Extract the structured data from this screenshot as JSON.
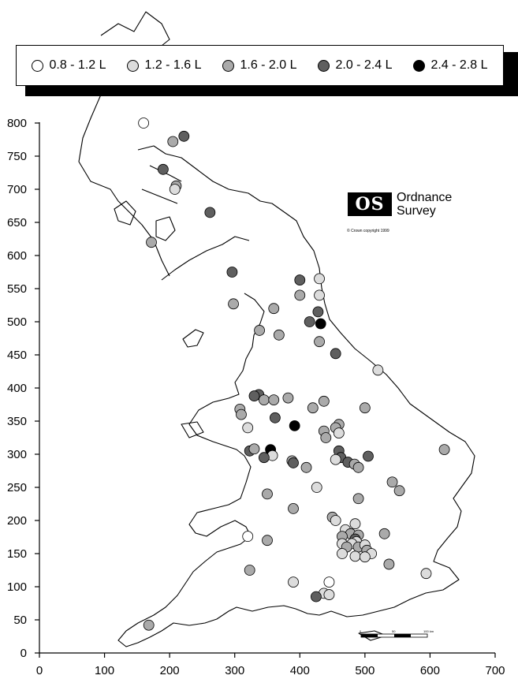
{
  "legend": {
    "items": [
      {
        "label": "0.8 - 1.2 L",
        "color": "#ffffff"
      },
      {
        "label": "1.2 - 1.6 L",
        "color": "#dcdcdc"
      },
      {
        "label": "1.6 - 2.0 L",
        "color": "#aaaaaa"
      },
      {
        "label": "2.0 - 2.4 L",
        "color": "#5f5f5f"
      },
      {
        "label": "2.4 - 2.8 L",
        "color": "#000000"
      }
    ]
  },
  "logo": {
    "badge": "OS",
    "line1": "Ordnance",
    "line2": "Survey",
    "copyright": "© Crown copyright 1999"
  },
  "chart_data": {
    "type": "scatter",
    "xlim": [
      0,
      700
    ],
    "ylim": [
      0,
      800
    ],
    "xticks": [
      "0",
      "100",
      "200",
      "300",
      "400",
      "500",
      "600",
      "700"
    ],
    "yticks": [
      "0",
      "50",
      "100",
      "150",
      "200",
      "250",
      "300",
      "350",
      "400",
      "450",
      "500",
      "550",
      "600",
      "650",
      "700",
      "750",
      "800"
    ],
    "scale_bar": {
      "labels": [
        "0",
        "50",
        "100 km"
      ]
    },
    "points": [
      {
        "x": 222,
        "y": 780,
        "c": 3
      },
      {
        "x": 205,
        "y": 772,
        "c": 2
      },
      {
        "x": 190,
        "y": 730,
        "c": 3
      },
      {
        "x": 210,
        "y": 705,
        "c": 2
      },
      {
        "x": 208,
        "y": 700,
        "c": 1
      },
      {
        "x": 262,
        "y": 665,
        "c": 3
      },
      {
        "x": 172,
        "y": 620,
        "c": 2
      },
      {
        "x": 160,
        "y": 800,
        "c": 0
      },
      {
        "x": 296,
        "y": 575,
        "c": 3
      },
      {
        "x": 298,
        "y": 527,
        "c": 2
      },
      {
        "x": 400,
        "y": 563,
        "c": 3
      },
      {
        "x": 430,
        "y": 565,
        "c": 1
      },
      {
        "x": 400,
        "y": 540,
        "c": 2
      },
      {
        "x": 430,
        "y": 540,
        "c": 1
      },
      {
        "x": 360,
        "y": 520,
        "c": 2
      },
      {
        "x": 428,
        "y": 515,
        "c": 3
      },
      {
        "x": 415,
        "y": 500,
        "c": 3
      },
      {
        "x": 432,
        "y": 497,
        "c": 4
      },
      {
        "x": 338,
        "y": 487,
        "c": 2
      },
      {
        "x": 368,
        "y": 480,
        "c": 2
      },
      {
        "x": 430,
        "y": 470,
        "c": 2
      },
      {
        "x": 455,
        "y": 452,
        "c": 3
      },
      {
        "x": 520,
        "y": 427,
        "c": 1
      },
      {
        "x": 382,
        "y": 385,
        "c": 2
      },
      {
        "x": 337,
        "y": 390,
        "c": 3
      },
      {
        "x": 330,
        "y": 388,
        "c": 3
      },
      {
        "x": 345,
        "y": 382,
        "c": 2
      },
      {
        "x": 360,
        "y": 382,
        "c": 2
      },
      {
        "x": 437,
        "y": 380,
        "c": 2
      },
      {
        "x": 500,
        "y": 370,
        "c": 2
      },
      {
        "x": 308,
        "y": 368,
        "c": 2
      },
      {
        "x": 310,
        "y": 360,
        "c": 2
      },
      {
        "x": 420,
        "y": 370,
        "c": 2
      },
      {
        "x": 362,
        "y": 355,
        "c": 3
      },
      {
        "x": 320,
        "y": 340,
        "c": 1
      },
      {
        "x": 392,
        "y": 343,
        "c": 4
      },
      {
        "x": 460,
        "y": 345,
        "c": 2
      },
      {
        "x": 437,
        "y": 335,
        "c": 2
      },
      {
        "x": 455,
        "y": 340,
        "c": 2
      },
      {
        "x": 440,
        "y": 325,
        "c": 2
      },
      {
        "x": 460,
        "y": 332,
        "c": 1
      },
      {
        "x": 355,
        "y": 307,
        "c": 4
      },
      {
        "x": 323,
        "y": 305,
        "c": 3
      },
      {
        "x": 330,
        "y": 308,
        "c": 2
      },
      {
        "x": 358,
        "y": 298,
        "c": 1
      },
      {
        "x": 345,
        "y": 295,
        "c": 3
      },
      {
        "x": 460,
        "y": 305,
        "c": 3
      },
      {
        "x": 463,
        "y": 295,
        "c": 3
      },
      {
        "x": 455,
        "y": 292,
        "c": 1
      },
      {
        "x": 505,
        "y": 297,
        "c": 3
      },
      {
        "x": 622,
        "y": 307,
        "c": 2
      },
      {
        "x": 388,
        "y": 290,
        "c": 2
      },
      {
        "x": 390,
        "y": 287,
        "c": 3
      },
      {
        "x": 410,
        "y": 280,
        "c": 2
      },
      {
        "x": 474,
        "y": 288,
        "c": 3
      },
      {
        "x": 484,
        "y": 285,
        "c": 2
      },
      {
        "x": 490,
        "y": 280,
        "c": 2
      },
      {
        "x": 542,
        "y": 258,
        "c": 2
      },
      {
        "x": 553,
        "y": 245,
        "c": 2
      },
      {
        "x": 426,
        "y": 250,
        "c": 1
      },
      {
        "x": 350,
        "y": 240,
        "c": 2
      },
      {
        "x": 490,
        "y": 233,
        "c": 2
      },
      {
        "x": 390,
        "y": 218,
        "c": 2
      },
      {
        "x": 450,
        "y": 205,
        "c": 2
      },
      {
        "x": 455,
        "y": 200,
        "c": 1
      },
      {
        "x": 485,
        "y": 195,
        "c": 1
      },
      {
        "x": 470,
        "y": 186,
        "c": 1
      },
      {
        "x": 478,
        "y": 180,
        "c": 2
      },
      {
        "x": 465,
        "y": 176,
        "c": 2
      },
      {
        "x": 490,
        "y": 178,
        "c": 2
      },
      {
        "x": 485,
        "y": 172,
        "c": 3
      },
      {
        "x": 487,
        "y": 168,
        "c": 1
      },
      {
        "x": 465,
        "y": 165,
        "c": 1
      },
      {
        "x": 480,
        "y": 165,
        "c": 1
      },
      {
        "x": 490,
        "y": 160,
        "c": 2
      },
      {
        "x": 472,
        "y": 160,
        "c": 2
      },
      {
        "x": 500,
        "y": 163,
        "c": 1
      },
      {
        "x": 503,
        "y": 155,
        "c": 2
      },
      {
        "x": 510,
        "y": 150,
        "c": 1
      },
      {
        "x": 465,
        "y": 150,
        "c": 1
      },
      {
        "x": 485,
        "y": 146,
        "c": 1
      },
      {
        "x": 500,
        "y": 145,
        "c": 1
      },
      {
        "x": 530,
        "y": 180,
        "c": 2
      },
      {
        "x": 537,
        "y": 134,
        "c": 2
      },
      {
        "x": 594,
        "y": 120,
        "c": 1
      },
      {
        "x": 320,
        "y": 176,
        "c": 0
      },
      {
        "x": 350,
        "y": 170,
        "c": 2
      },
      {
        "x": 323,
        "y": 125,
        "c": 2
      },
      {
        "x": 390,
        "y": 107,
        "c": 1
      },
      {
        "x": 445,
        "y": 107,
        "c": 0
      },
      {
        "x": 437,
        "y": 90,
        "c": 1
      },
      {
        "x": 445,
        "y": 88,
        "c": 1
      },
      {
        "x": 425,
        "y": 85,
        "c": 3
      },
      {
        "x": 168,
        "y": 42,
        "c": 2
      }
    ]
  }
}
